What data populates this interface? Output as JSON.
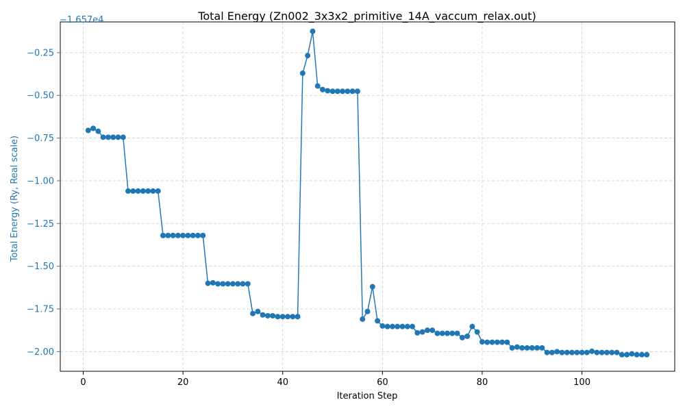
{
  "chart_data": {
    "type": "line",
    "title": "Total Energy (Zn002_3x3x2_primitive_14A_vaccum_relax.out)",
    "xlabel": "Iteration Step",
    "ylabel": "Total Energy (Ry, Real scale)",
    "y_offset_label": "−1.657e4",
    "xlim": [
      -4.6,
      118.6
    ],
    "ylim": [
      -2.115,
      -0.07
    ],
    "xticks": [
      0,
      20,
      40,
      60,
      80,
      100
    ],
    "xtick_labels": [
      "0",
      "20",
      "40",
      "60",
      "80",
      "100"
    ],
    "yticks": [
      -2.0,
      -1.75,
      -1.5,
      -1.25,
      -1.0,
      -0.75,
      -0.5,
      -0.25
    ],
    "ytick_labels": [
      "−2.00",
      "−1.75",
      "−1.50",
      "−1.25",
      "−1.00",
      "−0.75",
      "−0.50",
      "−0.25"
    ],
    "grid": true,
    "colors": {
      "line": "#1f77b4",
      "axis_label": "#1f77b4",
      "grid": "#cccccc"
    },
    "series": [
      {
        "x": [
          1,
          2,
          3,
          4,
          5,
          6,
          7,
          8,
          9,
          10,
          11,
          12,
          13,
          14,
          15,
          16,
          17,
          18,
          19,
          20,
          21,
          22,
          23,
          24,
          25,
          26,
          27,
          28,
          29,
          30,
          31,
          32,
          33,
          34,
          35,
          36,
          37,
          38,
          39,
          40,
          41,
          42,
          43,
          44,
          45,
          46,
          47,
          48,
          49,
          50,
          51,
          52,
          53,
          54,
          55,
          56,
          57,
          58,
          59,
          60,
          61,
          62,
          63,
          64,
          65,
          66,
          67,
          68,
          69,
          70,
          71,
          72,
          73,
          74,
          75,
          76,
          77,
          78,
          79,
          80,
          81,
          82,
          83,
          84,
          85,
          86,
          87,
          88,
          89,
          90,
          91,
          92,
          93,
          94,
          95,
          96,
          97,
          98,
          99,
          100,
          101,
          102,
          103,
          104,
          105,
          106,
          107,
          108,
          109,
          110,
          111,
          112,
          113
        ],
        "values": [
          -0.705,
          -0.693,
          -0.71,
          -0.745,
          -0.745,
          -0.745,
          -0.745,
          -0.745,
          -1.06,
          -1.06,
          -1.06,
          -1.06,
          -1.06,
          -1.06,
          -1.06,
          -1.32,
          -1.32,
          -1.32,
          -1.32,
          -1.32,
          -1.32,
          -1.32,
          -1.32,
          -1.32,
          -1.6,
          -1.597,
          -1.603,
          -1.603,
          -1.603,
          -1.603,
          -1.603,
          -1.603,
          -1.603,
          -1.777,
          -1.765,
          -1.785,
          -1.79,
          -1.79,
          -1.795,
          -1.795,
          -1.795,
          -1.795,
          -1.795,
          -0.37,
          -0.267,
          -0.125,
          -0.445,
          -0.466,
          -0.473,
          -0.476,
          -0.476,
          -0.476,
          -0.476,
          -0.476,
          -0.476,
          -1.81,
          -1.765,
          -1.62,
          -1.82,
          -1.85,
          -1.853,
          -1.853,
          -1.853,
          -1.853,
          -1.853,
          -1.853,
          -1.89,
          -1.885,
          -1.875,
          -1.875,
          -1.893,
          -1.893,
          -1.893,
          -1.893,
          -1.893,
          -1.918,
          -1.91,
          -1.853,
          -1.885,
          -1.943,
          -1.945,
          -1.945,
          -1.945,
          -1.945,
          -1.945,
          -1.978,
          -1.973,
          -1.978,
          -1.978,
          -1.978,
          -1.978,
          -1.978,
          -2.005,
          -2.005,
          -2.0,
          -2.005,
          -2.005,
          -2.005,
          -2.005,
          -2.005,
          -2.005,
          -1.998,
          -2.005,
          -2.005,
          -2.005,
          -2.005,
          -2.005,
          -2.018,
          -2.018,
          -2.013,
          -2.018,
          -2.018,
          -2.018
        ]
      }
    ]
  }
}
